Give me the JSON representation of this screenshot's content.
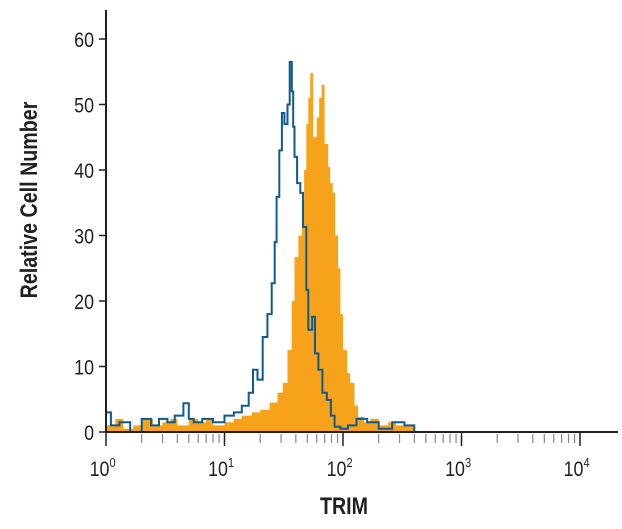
{
  "chart_data": {
    "type": "area",
    "title": "",
    "xlabel": "TRIM",
    "ylabel": "Relative Cell Number",
    "xscale": "log",
    "xlim": [
      1,
      10000
    ],
    "ylim": [
      0,
      60
    ],
    "x_tick_labels": [
      {
        "base": "10",
        "exp": "0"
      },
      {
        "base": "10",
        "exp": "1"
      },
      {
        "base": "10",
        "exp": "2"
      },
      {
        "base": "10",
        "exp": "3"
      },
      {
        "base": "10",
        "exp": "4"
      }
    ],
    "y_ticks": [
      0,
      10,
      20,
      30,
      40,
      50,
      60
    ],
    "grid": false,
    "legend": "none",
    "series": [
      {
        "style": "filled",
        "color": "#F7A21B",
        "x": [
          1,
          1.2,
          1.4,
          1.7,
          2,
          2.5,
          3,
          3.5,
          4,
          5,
          6,
          7,
          8,
          10,
          12,
          14,
          17,
          20,
          24,
          28,
          31,
          34,
          37,
          39,
          42,
          45,
          47,
          49,
          51,
          53,
          56,
          60,
          63,
          66,
          70,
          75,
          78,
          82,
          86,
          91,
          95,
          100,
          108,
          115,
          125,
          134,
          150,
          170,
          200,
          240,
          280,
          330,
          400,
          10000
        ],
        "y": [
          1,
          2,
          0.5,
          1,
          2,
          1,
          1.5,
          2,
          1,
          2,
          1.5,
          2,
          1,
          1.5,
          2,
          2.5,
          3,
          3.4,
          4.5,
          6,
          7.5,
          12.5,
          20,
          26.7,
          30,
          35.4,
          40,
          47,
          51,
          54.8,
          45,
          48,
          51,
          53,
          44,
          40.5,
          38,
          36.5,
          30,
          25,
          18,
          12.5,
          9,
          7.5,
          4,
          2.3,
          1.5,
          2,
          1,
          1.5,
          1,
          1,
          0,
          0
        ]
      },
      {
        "style": "line",
        "color": "#0F5A8F",
        "x": [
          1,
          1.1,
          1.3,
          1.6,
          2,
          2.4,
          2.8,
          3.3,
          3.8,
          4.5,
          5,
          5.5,
          6.5,
          8,
          10,
          12,
          14,
          16,
          17.4,
          19,
          21,
          23,
          25,
          26.5,
          27.5,
          29,
          30.5,
          32,
          34,
          35.5,
          37,
          38,
          39,
          41,
          43.6,
          46,
          49,
          51,
          55,
          58,
          62,
          67,
          73,
          79,
          85,
          95,
          110,
          130,
          160,
          200,
          260,
          330,
          400,
          10000
        ],
        "y": [
          3,
          1,
          1.5,
          0,
          2,
          1,
          2,
          1.5,
          2.5,
          4.4,
          2,
          1.5,
          2,
          1.5,
          2.5,
          3,
          4,
          6,
          9.5,
          8,
          14.5,
          18,
          22.7,
          29,
          35.9,
          43,
          48.7,
          47,
          50,
          56.5,
          52,
          46.6,
          42,
          38,
          36.5,
          31.3,
          21.7,
          15.6,
          17.6,
          12,
          9.5,
          6,
          4.9,
          2.5,
          0.8,
          0.5,
          1,
          2,
          1.5,
          0.5,
          1.5,
          1,
          0,
          0
        ]
      }
    ]
  }
}
